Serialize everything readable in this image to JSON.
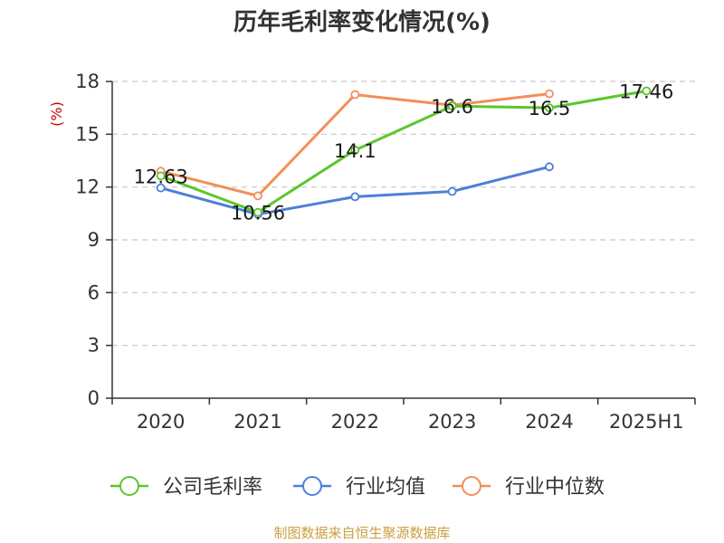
{
  "chart_data": {
    "type": "line",
    "title": "历年毛利率变化情况(%)",
    "ylabel": "(%)",
    "xlabel": "",
    "ylim": [
      0,
      18
    ],
    "yticks": [
      0,
      3,
      6,
      9,
      12,
      15,
      18
    ],
    "grid": true,
    "legend_position": "bottom",
    "categories": [
      "2020",
      "2021",
      "2022",
      "2023",
      "2024",
      "2025H1"
    ],
    "series": [
      {
        "name": "公司毛利率",
        "color": "#5cc62d",
        "values": [
          12.63,
          10.56,
          14.1,
          16.6,
          16.5,
          17.46
        ],
        "labels": [
          "12.63",
          "10.56",
          "14.1",
          "16.6",
          "16.5",
          "17.46"
        ]
      },
      {
        "name": "行业均值",
        "color": "#4f7fd8",
        "values": [
          11.95,
          10.45,
          11.45,
          11.75,
          13.15,
          null
        ]
      },
      {
        "name": "行业中位数",
        "color": "#f28f5a",
        "values": [
          12.9,
          11.5,
          17.25,
          16.65,
          17.3,
          null
        ]
      }
    ]
  },
  "source": "制图数据来自恒生聚源数据库",
  "colors": {
    "ylabel": "#cc0000",
    "source": "#c8a040",
    "grid": "#c8c8c8",
    "axis": "#333333"
  }
}
